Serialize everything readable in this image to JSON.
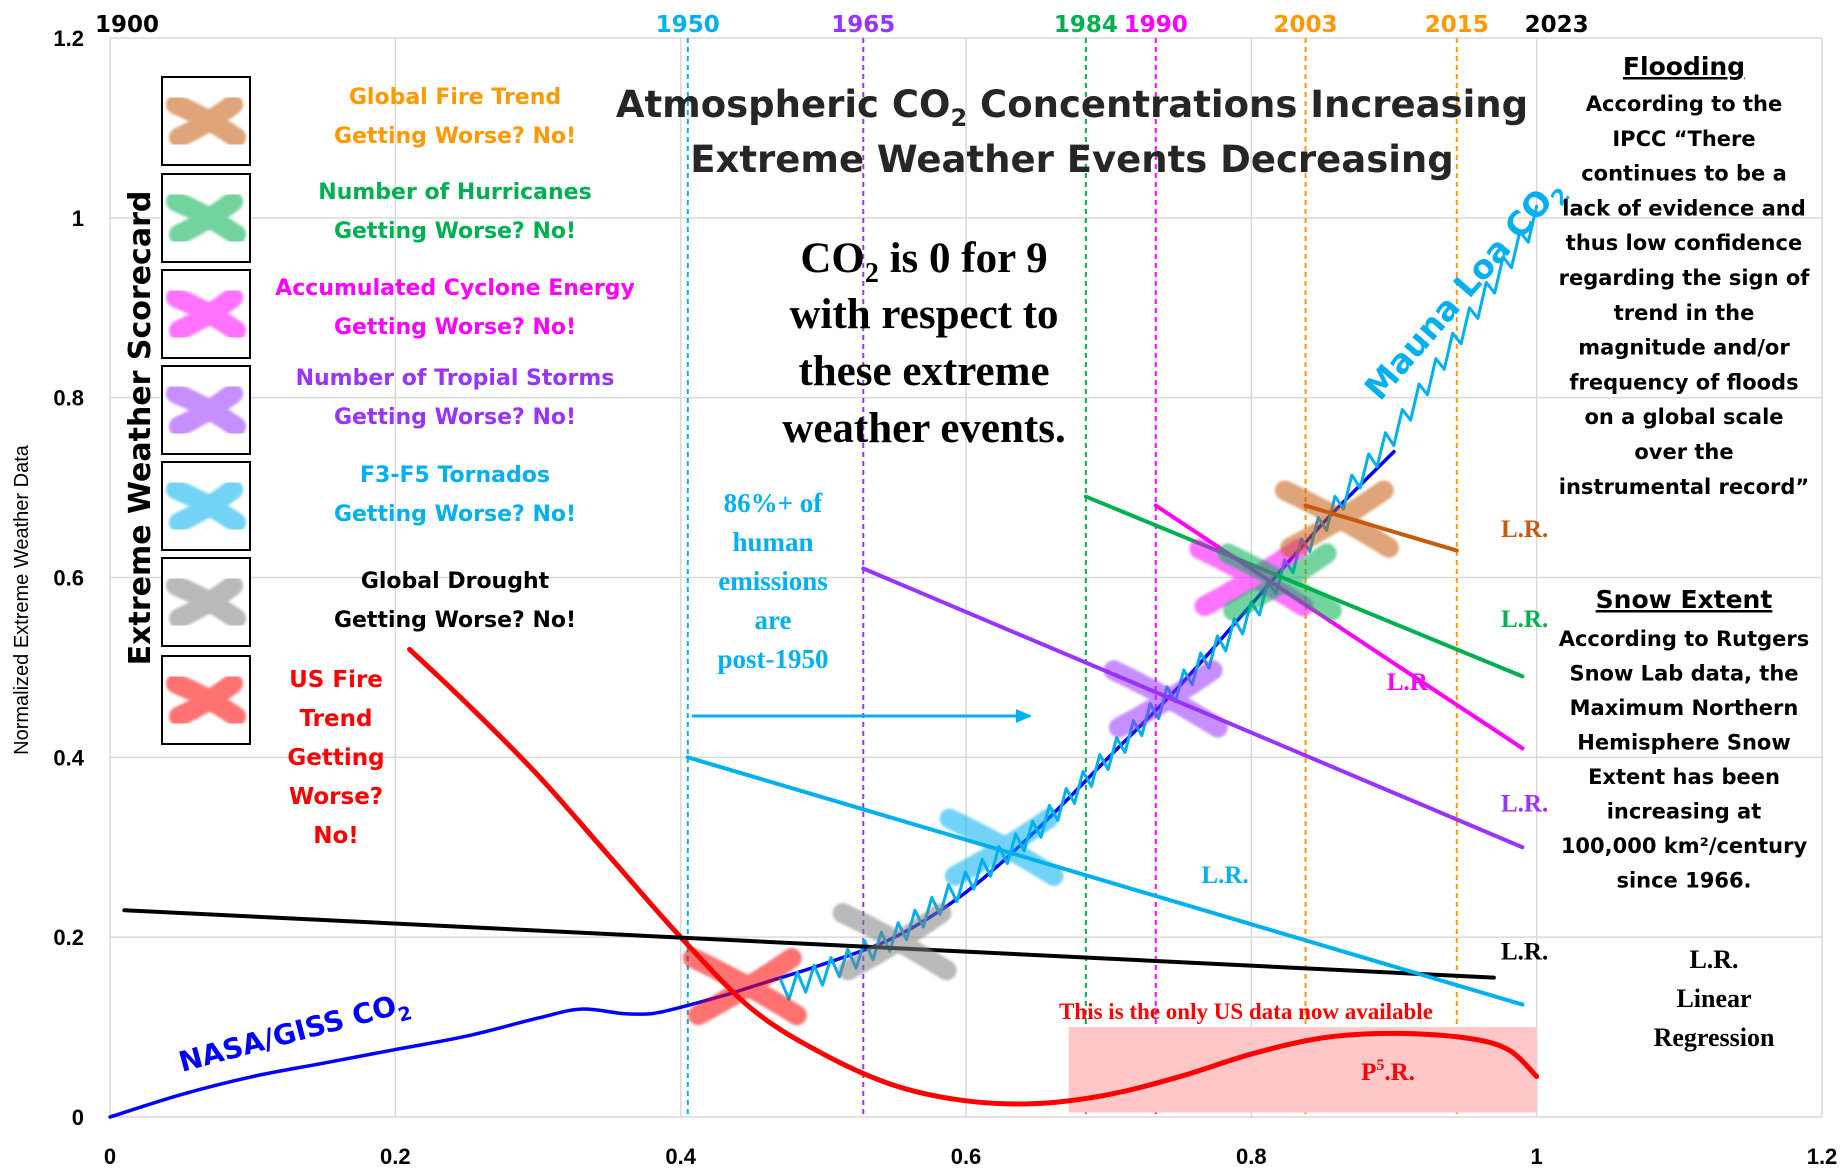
{
  "chart_data": {
    "type": "line",
    "title_line1_prefix": "Atmospheric CO",
    "title_line1_sub": "2",
    "title_line1_suffix": " Concentrations Increasing",
    "title_line2": "Extreme Weather Events Decreasing",
    "ylabel": "Normalized Extreme Weather Data",
    "xlim": [
      0,
      1.2
    ],
    "ylim": [
      0,
      1.2
    ],
    "grid": true,
    "x_ticks": [
      "0",
      "0.2",
      "0.4",
      "0.6",
      "0.8",
      "1",
      "1.2"
    ],
    "x_tick_values": [
      0,
      0.2,
      0.4,
      0.6,
      0.8,
      1.0,
      1.2
    ],
    "y_ticks": [
      "0",
      "0.2",
      "0.4",
      "0.6",
      "0.8",
      "1",
      "1.2"
    ],
    "y_tick_values": [
      0,
      0.2,
      0.4,
      0.6,
      0.8,
      1.0,
      1.2
    ],
    "year_markers": [
      {
        "year": "1900",
        "x": 0.0,
        "color": "#000000",
        "line": false
      },
      {
        "year": "1950",
        "x": 0.405,
        "color": "#00b0f0",
        "line": true
      },
      {
        "year": "1965",
        "x": 0.528,
        "color": "#9933ff",
        "line": true
      },
      {
        "year": "1984",
        "x": 0.684,
        "color": "#00b050",
        "line": true
      },
      {
        "year": "1990",
        "x": 0.733,
        "color": "#ff00ff",
        "line": true
      },
      {
        "year": "2003",
        "x": 0.838,
        "color": "#ff9900",
        "line": true
      },
      {
        "year": "2015",
        "x": 0.944,
        "color": "#ff9900",
        "line": true
      },
      {
        "year": "2023",
        "x": 1.0,
        "color": "#000000",
        "line": false
      }
    ],
    "series": [
      {
        "name": "NASA/GISS CO2",
        "color": "#0000ff",
        "x": [
          0,
          0.05,
          0.1,
          0.15,
          0.2,
          0.25,
          0.3,
          0.33,
          0.36,
          0.38,
          0.4,
          0.43,
          0.46,
          0.5,
          0.55,
          0.6,
          0.65,
          0.7,
          0.75,
          0.8,
          0.85,
          0.9
        ],
        "y": [
          0,
          0.025,
          0.045,
          0.06,
          0.075,
          0.09,
          0.11,
          0.12,
          0.115,
          0.115,
          0.122,
          0.135,
          0.15,
          0.17,
          0.2,
          0.25,
          0.32,
          0.4,
          0.48,
          0.57,
          0.66,
          0.74
        ]
      },
      {
        "name": "Mauna Loa CO2",
        "color": "#00b0f0",
        "x": [
          0.47,
          0.5,
          0.55,
          0.6,
          0.65,
          0.7,
          0.75,
          0.8,
          0.85,
          0.9,
          0.95,
          1.0
        ],
        "y": [
          0.14,
          0.16,
          0.2,
          0.26,
          0.32,
          0.4,
          0.48,
          0.56,
          0.66,
          0.76,
          0.88,
          1.0
        ]
      },
      {
        "name": "US Fire Trend",
        "color": "#ff0000",
        "x": [
          0.21,
          0.25,
          0.3,
          0.35,
          0.4,
          0.45,
          0.5,
          0.55,
          0.6,
          0.65,
          0.7,
          0.75,
          0.8,
          0.85,
          0.9,
          0.95,
          0.98,
          1.0
        ],
        "y": [
          0.52,
          0.46,
          0.38,
          0.29,
          0.2,
          0.12,
          0.07,
          0.035,
          0.018,
          0.015,
          0.025,
          0.045,
          0.07,
          0.088,
          0.093,
          0.088,
          0.075,
          0.045
        ]
      },
      {
        "name": "Global Drought L.R.",
        "color": "#000000",
        "x": [
          0.01,
          0.97
        ],
        "y": [
          0.23,
          0.155
        ]
      },
      {
        "name": "F3-F5 Tornados L.R.",
        "color": "#00b0f0",
        "x": [
          0.405,
          0.99
        ],
        "y": [
          0.4,
          0.125
        ]
      },
      {
        "name": "Number of Tropical Storms L.R.",
        "color": "#9933ff",
        "x": [
          0.528,
          0.99
        ],
        "y": [
          0.61,
          0.3
        ]
      },
      {
        "name": "Number of Hurricanes L.R.",
        "color": "#00b050",
        "x": [
          0.684,
          0.99
        ],
        "y": [
          0.69,
          0.49
        ]
      },
      {
        "name": "Accumulated Cyclone Energy L.R.",
        "color": "#ff00ff",
        "x": [
          0.733,
          0.99
        ],
        "y": [
          0.68,
          0.41
        ]
      },
      {
        "name": "Global Fire Trend L.R.",
        "color": "#c55a11",
        "x": [
          0.838,
          0.944
        ],
        "y": [
          0.68,
          0.63
        ]
      }
    ],
    "crossings": [
      {
        "color": "#ff0000",
        "x": 0.445,
        "y": 0.145
      },
      {
        "color": "#808080",
        "x": 0.55,
        "y": 0.195
      },
      {
        "color": "#00b0f0",
        "x": 0.625,
        "y": 0.3
      },
      {
        "color": "#9933ff",
        "x": 0.74,
        "y": 0.465
      },
      {
        "color": "#ff00ff",
        "x": 0.8,
        "y": 0.6
      },
      {
        "color": "#00b050",
        "x": 0.82,
        "y": 0.595
      },
      {
        "color": "#c55a11",
        "x": 0.86,
        "y": 0.665
      }
    ],
    "lr_labels": [
      {
        "text": "L.R.",
        "color": "#c55a11",
        "x": 0.975,
        "y": 0.645
      },
      {
        "text": "L.R.",
        "color": "#00b050",
        "x": 0.975,
        "y": 0.545
      },
      {
        "text": "L.R.",
        "color": "#ff00ff",
        "x": 0.895,
        "y": 0.475
      },
      {
        "text": "L.R.",
        "color": "#9933ff",
        "x": 0.975,
        "y": 0.34
      },
      {
        "text": "L.R.",
        "color": "#00b0f0",
        "x": 0.765,
        "y": 0.26
      },
      {
        "text": "L.R.",
        "color": "#000000",
        "x": 0.975,
        "y": 0.175
      }
    ],
    "series_labels": {
      "nasa_prefix": "NASA/GISS CO",
      "nasa_sub": "2",
      "mauna_prefix": "Mauna Loa CO",
      "mauna_sub": "2"
    },
    "us_data_box": {
      "x": [
        0.672,
        1.0
      ],
      "y": [
        0.005,
        0.1
      ],
      "color": "#ffc7c7"
    },
    "us_data_label": "This is the only US data now available",
    "p5r_label": "P",
    "p5r_sup": "5",
    "p5r_suffix": ".R."
  },
  "scorecard": {
    "title": "Extreme Weather Scorecard",
    "items": [
      {
        "line1": "Global Fire Trend",
        "line2": "Getting Worse? No!",
        "color": "#ff9900",
        "icon_color": "#c55a11",
        "icon": "x-mark-icon"
      },
      {
        "line1": "Number of Hurricanes",
        "line2": "Getting Worse? No!",
        "color": "#00b050",
        "icon_color": "#00b050",
        "icon": "x-mark-icon"
      },
      {
        "line1": "Accumulated Cyclone Energy",
        "line2": "Getting Worse? No!",
        "color": "#ff00ff",
        "icon_color": "#ff00ff",
        "icon": "x-mark-icon"
      },
      {
        "line1": "Number of Tropial Storms",
        "line2": "Getting Worse? No!",
        "color": "#9933ff",
        "icon_color": "#9933ff",
        "icon": "x-mark-icon"
      },
      {
        "line1": "F3-F5 Tornados",
        "line2": "Getting Worse? No!",
        "color": "#00b0f0",
        "icon_color": "#00b0f0",
        "icon": "x-mark-icon"
      },
      {
        "line1": "Global Drought",
        "line2": "Getting Worse? No!",
        "color": "#000000",
        "icon_color": "#808080",
        "icon": "x-mark-icon"
      }
    ],
    "us_fire": {
      "lines": [
        "US Fire",
        "Trend",
        "Getting",
        "Worse?",
        "No!"
      ],
      "color": "#ff0000",
      "icon_color": "#ff0000",
      "icon": "x-mark-icon"
    }
  },
  "co2_statement": {
    "line1_prefix": "CO",
    "line1_sub": "2",
    "line1_suffix": " is 0 for 9",
    "line2": "with respect to",
    "line3": "these extreme",
    "line4": "weather events."
  },
  "emissions_note": {
    "lines": [
      "86%+ of",
      "human",
      "emissions",
      "are",
      "post-1950"
    ],
    "color": "#00b0f0"
  },
  "flooding": {
    "heading": "Flooding",
    "lines": [
      "According to the",
      "IPCC “There",
      "continues to be a",
      "lack of evidence and",
      "thus low confidence",
      "regarding the sign of",
      "trend in the",
      "magnitude and/or",
      "frequency of floods",
      "on a global scale",
      "over the",
      "instrumental record”"
    ]
  },
  "snow": {
    "heading": "Snow Extent",
    "lines": [
      "According to Rutgers",
      "Snow Lab data, the",
      "Maximum Northern",
      "Hemisphere Snow",
      "Extent has been",
      "increasing at",
      "100,000 km²/century",
      "since 1966."
    ]
  },
  "lr_legend": {
    "lines": [
      "L.R.",
      "Linear",
      "Regression"
    ]
  }
}
